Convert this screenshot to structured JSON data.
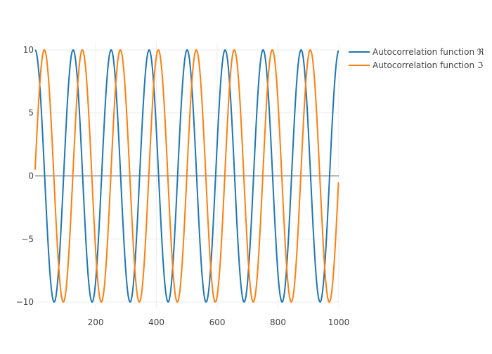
{
  "chart_data": {
    "type": "line",
    "title": "",
    "xlabel": "",
    "ylabel": "",
    "xlim": [
      1,
      1000
    ],
    "ylim": [
      -10.5,
      10.5
    ],
    "x_ticks": [
      200,
      400,
      600,
      800,
      1000
    ],
    "x_tick_labels": [
      "200",
      "400",
      "600",
      "800",
      "1000"
    ],
    "y_ticks": [
      -10,
      -5,
      0,
      5,
      10
    ],
    "y_tick_labels": [
      "−10",
      "−5",
      "0",
      "5",
      "10"
    ],
    "grid": true,
    "zero_line": true,
    "legend_position": "top-right",
    "x_range": [
      1,
      1000
    ],
    "sample_step": 2,
    "series": [
      {
        "name": "Autocorrelation function ℜ",
        "color": "#1f77b4",
        "form": "10*cos(2*pi*(x-1)/125)",
        "amplitude": 10,
        "period": 125,
        "phase_offset": 1,
        "function": "cos"
      },
      {
        "name": "Autocorrelation function ℑ",
        "color": "#ff7f0e",
        "form": "10*sin(2*pi*x/125)",
        "amplitude": 10,
        "period": 125,
        "phase_offset": 0,
        "function": "sin"
      }
    ]
  }
}
